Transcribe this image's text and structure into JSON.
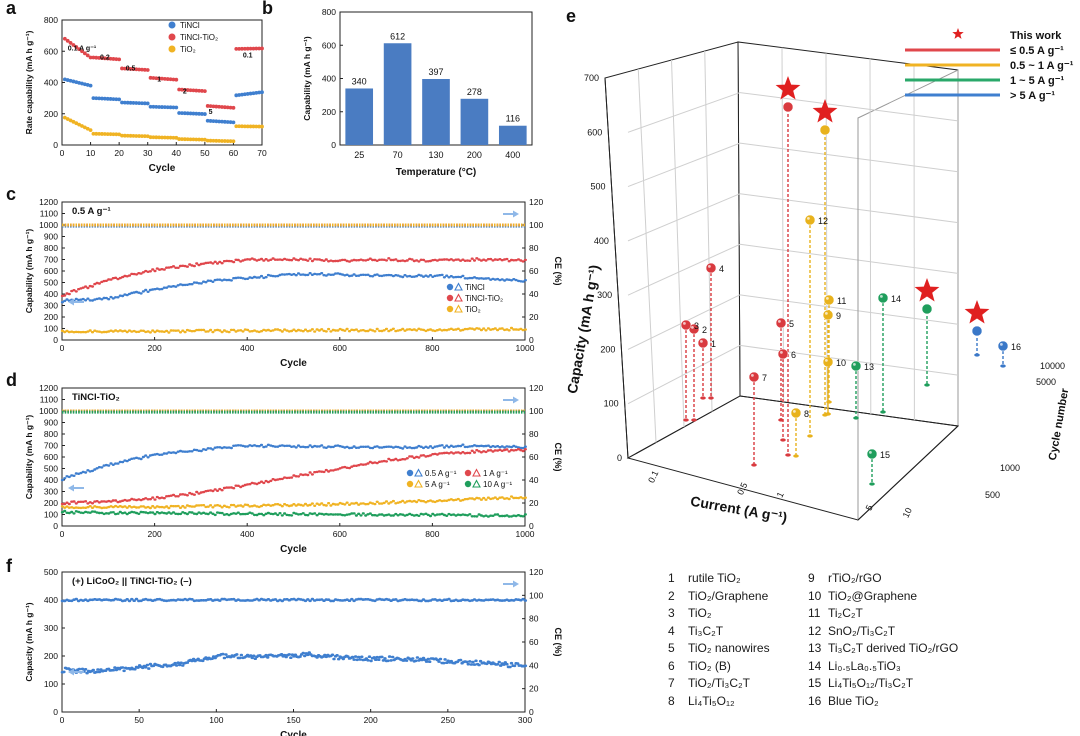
{
  "panel_labels": {
    "a": "a",
    "b": "b",
    "c": "c",
    "d": "d",
    "e": "e",
    "f": "f"
  },
  "chart_data": [
    {
      "id": "a",
      "type": "scatter",
      "xlabel": "Cycle",
      "ylabel": "Rate capability (mA h g⁻¹)",
      "xlim": [
        0,
        70
      ],
      "ylim": [
        0,
        800
      ],
      "xticks": [
        "0",
        "10",
        "20",
        "30",
        "40",
        "50",
        "60",
        "70"
      ],
      "yticks": [
        "0",
        "200",
        "400",
        "600",
        "800"
      ],
      "legend_position": "top-right",
      "rate_labels": [
        {
          "text": "0.1 A g⁻¹",
          "x": 7,
          "y": 605
        },
        {
          "text": "0.2",
          "x": 15,
          "y": 548
        },
        {
          "text": "0.5",
          "x": 24,
          "y": 478
        },
        {
          "text": "1",
          "x": 34,
          "y": 407
        },
        {
          "text": "2",
          "x": 43,
          "y": 330
        },
        {
          "text": "5",
          "x": 52,
          "y": 200
        },
        {
          "text": "0.1",
          "x": 65,
          "y": 560
        }
      ],
      "series": [
        {
          "name": "TiNCl",
          "color": "#3f7fcf",
          "segments": [
            [
              1,
              10,
              420,
              380
            ],
            [
              11,
              20,
              300,
              292
            ],
            [
              21,
              30,
              272,
              266
            ],
            [
              31,
              40,
              245,
              240
            ],
            [
              41,
              50,
              205,
              198
            ],
            [
              51,
              60,
              155,
              145
            ],
            [
              61,
              70,
              318,
              338
            ]
          ]
        },
        {
          "name": "TiNCl-TiO₂",
          "color": "#e0474c",
          "segments": [
            [
              1,
              10,
              680,
              560
            ],
            [
              11,
              20,
              560,
              548
            ],
            [
              21,
              30,
              490,
              480
            ],
            [
              31,
              40,
              430,
              418
            ],
            [
              41,
              50,
              355,
              345
            ],
            [
              51,
              60,
              250,
              238
            ],
            [
              61,
              70,
              615,
              618
            ]
          ]
        },
        {
          "name": "TiO₂",
          "color": "#f0b323",
          "segments": [
            [
              1,
              10,
              175,
              95
            ],
            [
              11,
              20,
              72,
              68
            ],
            [
              21,
              30,
              60,
              56
            ],
            [
              31,
              40,
              50,
              46
            ],
            [
              41,
              50,
              38,
              34
            ],
            [
              51,
              60,
              28,
              24
            ],
            [
              61,
              70,
              120,
              118
            ]
          ]
        }
      ]
    },
    {
      "id": "b",
      "type": "bar",
      "xlabel": "Temperature (°C)",
      "ylabel": "Capability (mA h g⁻¹)",
      "ylim": [
        0,
        800
      ],
      "yticks": [
        "0",
        "200",
        "400",
        "600",
        "800"
      ],
      "categories": [
        "25",
        "70",
        "130",
        "200",
        "400"
      ],
      "values": [
        340,
        612,
        397,
        278,
        116
      ],
      "value_labels": [
        "340",
        "612",
        "397",
        "278",
        "116"
      ],
      "color": "#4a7cc2"
    },
    {
      "id": "c",
      "type": "scatter",
      "annotation": "0.5 A g⁻¹",
      "xlabel": "Cycle",
      "ylabel": "Capability (mA h g⁻¹)",
      "y2label": "CE (%)",
      "xlim": [
        0,
        1000
      ],
      "ylim": [
        0,
        1200
      ],
      "y2lim": [
        0,
        120
      ],
      "xticks": [
        "0",
        "200",
        "400",
        "600",
        "800",
        "1000"
      ],
      "yticks": [
        "0",
        "100",
        "200",
        "300",
        "400",
        "500",
        "600",
        "700",
        "800",
        "900",
        "1000",
        "1100",
        "1200"
      ],
      "y2ticks": [
        "0",
        "20",
        "40",
        "60",
        "80",
        "100",
        "120"
      ],
      "legend_position": "bottom-right",
      "series": [
        {
          "name": "TiNCl",
          "color": "#3f7fcf",
          "points": [
            [
              0,
              340
            ],
            [
              100,
              360
            ],
            [
              200,
              440
            ],
            [
              300,
              500
            ],
            [
              400,
              540
            ],
            [
              500,
              570
            ],
            [
              600,
              570
            ],
            [
              700,
              555
            ],
            [
              800,
              560
            ],
            [
              900,
              540
            ],
            [
              1000,
              510
            ]
          ],
          "ce": 99
        },
        {
          "name": "TiNCl-TiO₂",
          "color": "#e0474c",
          "points": [
            [
              0,
              390
            ],
            [
              100,
              520
            ],
            [
              200,
              610
            ],
            [
              300,
              660
            ],
            [
              400,
              700
            ],
            [
              500,
              700
            ],
            [
              600,
              690
            ],
            [
              700,
              700
            ],
            [
              800,
              690
            ],
            [
              900,
              700
            ],
            [
              1000,
              690
            ]
          ],
          "ce": 100
        },
        {
          "name": "TiO₂",
          "color": "#f0b323",
          "points": [
            [
              0,
              70
            ],
            [
              200,
              75
            ],
            [
              400,
              80
            ],
            [
              600,
              85
            ],
            [
              800,
              90
            ],
            [
              1000,
              95
            ]
          ],
          "ce": 100
        }
      ]
    },
    {
      "id": "d",
      "type": "scatter",
      "annotation": "TiNCl-TiO₂",
      "xlabel": "Cycle",
      "ylabel": "Capability (mA h g⁻¹)",
      "y2label": "CE (%)",
      "xlim": [
        0,
        1000
      ],
      "ylim": [
        0,
        1200
      ],
      "y2lim": [
        0,
        120
      ],
      "xticks": [
        "0",
        "200",
        "400",
        "600",
        "800",
        "1000"
      ],
      "yticks": [
        "0",
        "100",
        "200",
        "300",
        "400",
        "500",
        "600",
        "700",
        "800",
        "900",
        "1000",
        "1100",
        "1200"
      ],
      "y2ticks": [
        "0",
        "20",
        "40",
        "60",
        "80",
        "100",
        "120"
      ],
      "legend_position": "bottom-right",
      "series": [
        {
          "name": "0.5 A g⁻¹",
          "color": "#3f7fcf",
          "points": [
            [
              0,
              410
            ],
            [
              100,
              530
            ],
            [
              200,
              620
            ],
            [
              300,
              660
            ],
            [
              400,
              700
            ],
            [
              500,
              690
            ],
            [
              600,
              690
            ],
            [
              700,
              680
            ],
            [
              800,
              690
            ],
            [
              900,
              700
            ],
            [
              1000,
              680
            ]
          ],
          "ce": 100
        },
        {
          "name": "1 A g⁻¹",
          "color": "#e0474c",
          "points": [
            [
              0,
              200
            ],
            [
              100,
              210
            ],
            [
              200,
              240
            ],
            [
              300,
              290
            ],
            [
              400,
              360
            ],
            [
              500,
              430
            ],
            [
              600,
              500
            ],
            [
              700,
              570
            ],
            [
              800,
              620
            ],
            [
              900,
              650
            ],
            [
              1000,
              660
            ]
          ],
          "ce": 100
        },
        {
          "name": "5 A g⁻¹",
          "color": "#f0b323",
          "points": [
            [
              0,
              160
            ],
            [
              200,
              165
            ],
            [
              400,
              175
            ],
            [
              600,
              190
            ],
            [
              800,
              220
            ],
            [
              1000,
              250
            ]
          ],
          "ce": 100
        },
        {
          "name": "10 A g⁻¹",
          "color": "#1f9e5c",
          "points": [
            [
              0,
              120
            ],
            [
              200,
              110
            ],
            [
              400,
              105
            ],
            [
              600,
              100
            ],
            [
              800,
              95
            ],
            [
              1000,
              90
            ]
          ],
          "ce": 99
        }
      ]
    },
    {
      "id": "e",
      "type": "scatter",
      "title": "",
      "xlabel": "Current (A g⁻¹)",
      "ylabel": "Capacity (mA h g⁻¹)",
      "zlabel": "Cycle number",
      "xticks": [
        "0.1",
        "0.5",
        "1",
        "5",
        "10"
      ],
      "yticks": [
        "0",
        "100",
        "200",
        "300",
        "400",
        "500",
        "600",
        "700"
      ],
      "zticks": [
        "500",
        "1000",
        "5000",
        "10000"
      ],
      "legend_position": "top-right",
      "legend": [
        {
          "label": "This work",
          "type": "star",
          "color": "#e02020"
        },
        {
          "label": "≤ 0.5 A g⁻¹",
          "type": "line",
          "color": "#e0474c"
        },
        {
          "label": "0.5 ~ 1 A g⁻¹",
          "type": "line",
          "color": "#f0b323"
        },
        {
          "label": "1 ~ 5 A g⁻¹",
          "type": "line",
          "color": "#2aa86a"
        },
        {
          "label": "> 5 A g⁻¹",
          "type": "line",
          "color": "#3f7fcf"
        }
      ],
      "points": [
        {
          "label": "",
          "color": "red",
          "star": true,
          "sx": 788,
          "sy": 103,
          "base": 455,
          "foot": 468
        },
        {
          "label": "",
          "color": "yellow",
          "star": true,
          "sx": 825,
          "sy": 126,
          "base": 415,
          "foot": 415
        },
        {
          "label": "",
          "color": "green",
          "star": true,
          "sx": 927,
          "sy": 305,
          "base": 385,
          "foot": 398
        },
        {
          "label": "",
          "color": "blue",
          "star": true,
          "sx": 977,
          "sy": 327,
          "base": 355,
          "foot": 362
        },
        {
          "label": "1",
          "color": "red",
          "sx": 703,
          "sy": 343,
          "base": 398,
          "foot": 398
        },
        {
          "label": "2",
          "color": "red",
          "sx": 694,
          "sy": 329,
          "base": 420,
          "foot": 420
        },
        {
          "label": "3",
          "color": "red",
          "sx": 686,
          "sy": 325,
          "base": 420,
          "foot": 420
        },
        {
          "label": "4",
          "color": "red",
          "sx": 711,
          "sy": 268,
          "base": 398,
          "foot": 398
        },
        {
          "label": "5",
          "color": "red",
          "sx": 781,
          "sy": 323,
          "base": 420,
          "foot": 420
        },
        {
          "label": "6",
          "color": "red",
          "sx": 783,
          "sy": 354,
          "base": 440,
          "foot": 440
        },
        {
          "label": "7",
          "color": "red",
          "sx": 754,
          "sy": 377,
          "base": 465,
          "foot": 465
        },
        {
          "label": "8",
          "color": "yellow",
          "sx": 796,
          "sy": 413,
          "base": 456,
          "foot": 456
        },
        {
          "label": "9",
          "color": "yellow",
          "sx": 828,
          "sy": 315,
          "base": 414,
          "foot": 414
        },
        {
          "label": "10",
          "color": "yellow",
          "sx": 828,
          "sy": 362,
          "base": 414,
          "foot": 414
        },
        {
          "label": "11",
          "color": "yellow",
          "sx": 829,
          "sy": 300,
          "base": 402,
          "foot": 402
        },
        {
          "label": "12",
          "color": "yellow",
          "sx": 810,
          "sy": 220,
          "base": 436,
          "foot": 436
        },
        {
          "label": "13",
          "color": "green",
          "sx": 856,
          "sy": 366,
          "base": 418,
          "foot": 418
        },
        {
          "label": "14",
          "color": "green",
          "sx": 883,
          "sy": 298,
          "base": 412,
          "foot": 412
        },
        {
          "label": "15",
          "color": "green",
          "sx": 872,
          "sy": 454,
          "base": 484,
          "foot": 484
        },
        {
          "label": "16",
          "color": "blue",
          "sx": 1003,
          "sy": 346,
          "base": 366,
          "foot": 366
        }
      ]
    },
    {
      "id": "f",
      "type": "scatter",
      "annotation": "(+) LiCoO₂ || TiNCl-TiO₂ (–)",
      "xlabel": "Cycle",
      "ylabel": "Capacity (mA h g⁻¹)",
      "y2label": "CE (%)",
      "xlim": [
        0,
        300
      ],
      "ylim": [
        0,
        500
      ],
      "y2lim": [
        0,
        120
      ],
      "xticks": [
        "0",
        "50",
        "100",
        "150",
        "200",
        "250",
        "300"
      ],
      "yticks": [
        "0",
        "100",
        "200",
        "300",
        "400",
        "500"
      ],
      "y2ticks": [
        "0",
        "20",
        "40",
        "60",
        "80",
        "100",
        "120"
      ],
      "series": [
        {
          "name": "Capacity",
          "color": "#3f7fcf",
          "points": [
            [
              0,
              150
            ],
            [
              20,
              145
            ],
            [
              50,
              160
            ],
            [
              80,
              175
            ],
            [
              100,
              200
            ],
            [
              130,
              195
            ],
            [
              160,
              205
            ],
            [
              190,
              190
            ],
            [
              220,
              190
            ],
            [
              240,
              185
            ],
            [
              270,
              175
            ],
            [
              300,
              165
            ]
          ]
        },
        {
          "name": "CE",
          "color": "#3f7fcf",
          "value": 96
        }
      ]
    }
  ],
  "references": [
    {
      "num": "1",
      "text": "rutile TiO₂"
    },
    {
      "num": "2",
      "text": "TiO₂/Graphene"
    },
    {
      "num": "3",
      "text": "TiO₂"
    },
    {
      "num": "4",
      "text": "Ti₃C₂T"
    },
    {
      "num": "5",
      "text": "TiO₂ nanowires"
    },
    {
      "num": "6",
      "text": "TiO₂ (B)"
    },
    {
      "num": "7",
      "text": "TiO₂/Ti₃C₂T"
    },
    {
      "num": "8",
      "text": "Li₄Ti₅O₁₂"
    },
    {
      "num": "9",
      "text": "rTiO₂/rGO"
    },
    {
      "num": "10",
      "text": "TiO₂@Graphene"
    },
    {
      "num": "11",
      "text": "Ti₂C₂T"
    },
    {
      "num": "12",
      "text": "SnO₂/Ti₃C₂T"
    },
    {
      "num": "13",
      "text": "Ti₃C₂T derived TiO₂/rGO"
    },
    {
      "num": "14",
      "text": "Li₀.₅La₀.₅TiO₃"
    },
    {
      "num": "15",
      "text": "Li₄Ti₅O₁₂/Ti₃C₂T"
    },
    {
      "num": "16",
      "text": "Blue TiO₂"
    }
  ]
}
